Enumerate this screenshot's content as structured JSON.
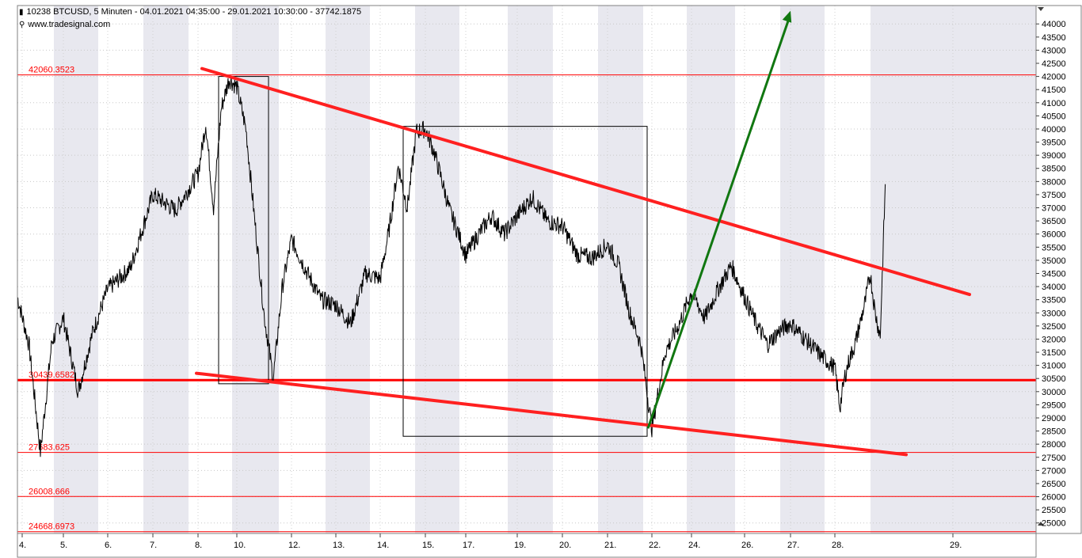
{
  "header": {
    "title_line": "10238  BTCUSD, 5 Minuten - 04.01.2021 04:35:00 - 29.01.2021 10:30:00 - 37742.1875",
    "watermark": "www.tradesignal.com",
    "title_icon": "chart-flag-icon",
    "watermark_icon": "globe-icon"
  },
  "chart_data": {
    "type": "line",
    "symbol": "BTCUSD",
    "interval": "5 Minuten",
    "ylim": [
      24600,
      44700
    ],
    "y_axis_position": "right",
    "y_ticks": [
      25000,
      25500,
      26000,
      26500,
      27000,
      27500,
      28000,
      28500,
      29000,
      29500,
      30000,
      30500,
      31000,
      31500,
      32000,
      32500,
      33000,
      33500,
      34000,
      34500,
      35000,
      35500,
      36000,
      36500,
      37000,
      37500,
      38000,
      38500,
      39000,
      39500,
      40000,
      40500,
      41000,
      41500,
      42000,
      42500,
      43000,
      43500,
      44000
    ],
    "x_ticks": [
      "4.",
      "5.",
      "6.",
      "7.",
      "8.",
      "10.",
      "12.",
      "13.",
      "14.",
      "15.",
      "17.",
      "19.",
      "20.",
      "21.",
      "22.",
      "24.",
      "26.",
      "27.",
      "28.",
      "29."
    ],
    "grid": true,
    "alternating_day_bands": true,
    "colors": {
      "price": "#000000",
      "levels": "#ff0000",
      "trend": "#ff2020",
      "arrow": "#117711",
      "band": "#e8e8ef",
      "box": "#000000"
    },
    "horizontal_levels": [
      {
        "label": "42060.3523",
        "value": 42060.3523
      },
      {
        "label": "30439.6582",
        "value": 30439.6582,
        "bold": true
      },
      {
        "label": "27683.625",
        "value": 27683.625
      },
      {
        "label": "26008.666",
        "value": 26008.666
      },
      {
        "label": "24668.6973",
        "value": 24668.6973
      }
    ],
    "trend_lines": [
      {
        "name": "upper-trend",
        "from": [
          "8.",
          42300
        ],
        "to": [
          "29.",
          33700
        ]
      },
      {
        "name": "lower-trend",
        "from": [
          "8.",
          30700
        ],
        "to": [
          "29.",
          27600
        ]
      }
    ],
    "arrow": {
      "from": [
        "22.",
        28600
      ],
      "to": [
        "27.",
        44500
      ]
    },
    "boxes": [
      {
        "from": [
          "8.",
          42000
        ],
        "to": [
          "12.",
          30300
        ]
      },
      {
        "from": [
          "14.",
          40100
        ],
        "to": [
          "22.",
          28300
        ]
      }
    ],
    "price_series": {
      "keypoints": [
        [
          "4.",
          33600
        ],
        [
          "4.",
          31800
        ],
        [
          "4.",
          27700
        ],
        [
          "4.",
          31900
        ],
        [
          "5.",
          32800
        ],
        [
          "5.",
          30000
        ],
        [
          "5.",
          32300
        ],
        [
          "6.",
          33900
        ],
        [
          "6.",
          34700
        ],
        [
          "7.",
          37500
        ],
        [
          "7.",
          36900
        ],
        [
          "8.",
          38300
        ],
        [
          "8.",
          40200
        ],
        [
          "8.",
          37000
        ],
        [
          "8.",
          40800
        ],
        [
          "8.",
          41900
        ],
        [
          "10.",
          41600
        ],
        [
          "10.",
          40000
        ],
        [
          "10.",
          36400
        ],
        [
          "10.",
          32900
        ],
        [
          "10.",
          30500
        ],
        [
          "10.",
          34000
        ],
        [
          "12.",
          35800
        ],
        [
          "12.",
          34600
        ],
        [
          "12.",
          33500
        ],
        [
          "13.",
          33300
        ],
        [
          "13.",
          32600
        ],
        [
          "13.",
          34500
        ],
        [
          "14.",
          34300
        ],
        [
          "14.",
          36200
        ],
        [
          "14.",
          38600
        ],
        [
          "14.",
          37000
        ],
        [
          "14.",
          39900
        ],
        [
          "15.",
          40000
        ],
        [
          "15.",
          39200
        ],
        [
          "15.",
          38100
        ],
        [
          "15.",
          36900
        ],
        [
          "15.",
          36100
        ],
        [
          "17.",
          35200
        ],
        [
          "17.",
          36000
        ],
        [
          "17.",
          36700
        ],
        [
          "17.",
          36000
        ],
        [
          "19.",
          36700
        ],
        [
          "19.",
          37400
        ],
        [
          "19.",
          36500
        ],
        [
          "20.",
          36300
        ],
        [
          "20.",
          35200
        ],
        [
          "20.",
          35100
        ],
        [
          "21.",
          35600
        ],
        [
          "21.",
          34800
        ],
        [
          "21.",
          33000
        ],
        [
          "21.",
          31800
        ],
        [
          "22.",
          28600
        ],
        [
          "22.",
          31500
        ],
        [
          "22.",
          32500
        ],
        [
          "24.",
          33800
        ],
        [
          "24.",
          32800
        ],
        [
          "24.",
          33900
        ],
        [
          "24.",
          34800
        ],
        [
          "26.",
          33600
        ],
        [
          "26.",
          32600
        ],
        [
          "26.",
          31800
        ],
        [
          "26.",
          32300
        ],
        [
          "27.",
          32600
        ],
        [
          "27.",
          32000
        ],
        [
          "27.",
          31400
        ],
        [
          "28.",
          30900
        ],
        [
          "28.",
          29400
        ],
        [
          "28.",
          30600
        ],
        [
          "28.",
          31300
        ],
        [
          "28.",
          31800
        ],
        [
          "28.",
          32600
        ],
        [
          "28.",
          33400
        ],
        [
          "28.",
          34500
        ],
        [
          "28.",
          33000
        ],
        [
          "28.",
          32100
        ],
        [
          "28.",
          37900
        ]
      ]
    }
  }
}
